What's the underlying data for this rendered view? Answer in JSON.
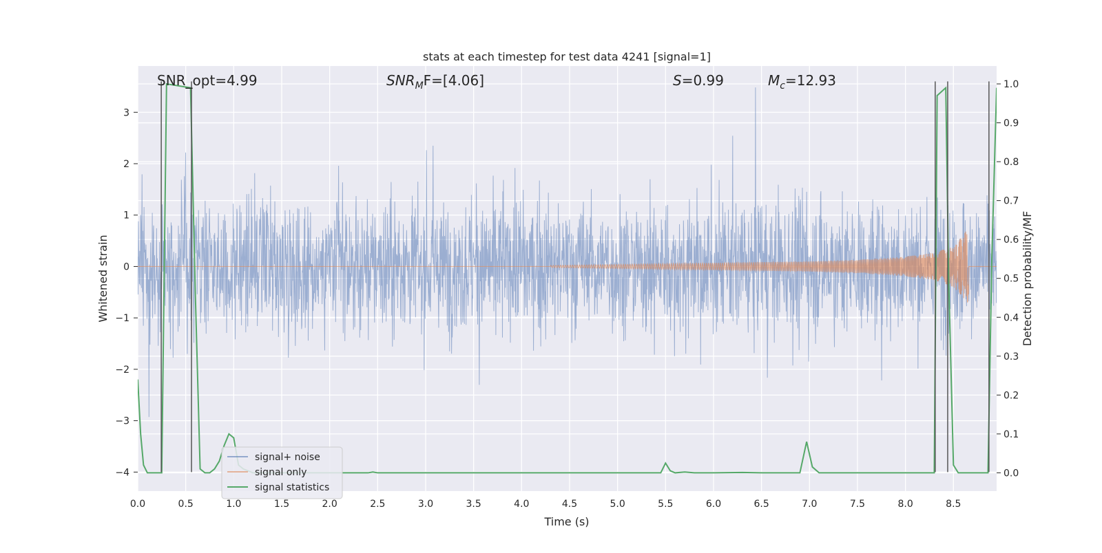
{
  "chart_data": {
    "type": "line",
    "title": "stats at each timestep for test data 4241 [signal=1]",
    "xlabel": "Time (s)",
    "ylabel_left": "Whitened strain",
    "ylabel_right": "Detection probability/MF",
    "xlim": [
      0,
      8.95
    ],
    "ylim_left": [
      -4.37,
      3.9
    ],
    "ylim_right": [
      -0.047,
      1.046
    ],
    "x_ticks": [
      0.0,
      0.5,
      1.0,
      1.5,
      2.0,
      2.5,
      3.0,
      3.5,
      4.0,
      4.5,
      5.0,
      5.5,
      6.0,
      6.5,
      7.0,
      7.5,
      8.0,
      8.5
    ],
    "x_tick_labels": [
      "0.0",
      "0.5",
      "1.0",
      "1.5",
      "2.0",
      "2.5",
      "3.0",
      "3.5",
      "4.0",
      "4.5",
      "5.0",
      "5.5",
      "6.0",
      "6.5",
      "7.0",
      "7.5",
      "8.0",
      "8.5"
    ],
    "y_ticks_left": [
      3,
      2,
      1,
      0,
      -1,
      -2,
      -3,
      -4
    ],
    "y_tick_labels_left": [
      "3",
      "2",
      "1",
      "0",
      "−1",
      "−2",
      "−3",
      "−4"
    ],
    "y_ticks_right": [
      1.0,
      0.9,
      0.8,
      0.7,
      0.6,
      0.5,
      0.4,
      0.3,
      0.2,
      0.1,
      0.0
    ],
    "y_tick_labels_right": [
      "1.0",
      "0.9",
      "0.8",
      "0.7",
      "0.6",
      "0.5",
      "0.4",
      "0.3",
      "0.2",
      "0.1",
      "0.0"
    ],
    "annotations": {
      "snr_opt": "SNR_opt=4.99",
      "snr_mf_prefix": "SNR",
      "snr_mf_sub": "M",
      "snr_mf_suffix": "F=[4.06]",
      "s_prefix": "S",
      "s_value": "=0.99",
      "mc_prefix": "M",
      "mc_sub": "c",
      "mc_value": "=12.93"
    },
    "legend": {
      "placement": "lower-left",
      "entries": [
        "signal+ noise",
        "signal only",
        "signal statistics"
      ]
    },
    "series": [
      {
        "name": "signal+ noise",
        "color": "#4c72b0",
        "style": "dense noise, amplitude approx ±1.5 with spikes up to about ±3.6",
        "envelope": {
          "typical": 1.5,
          "max_spike": 3.6
        }
      },
      {
        "name": "signal only",
        "color": "#dd8452",
        "style": "chirp, zero until about 4.3 s then growing oscillation ending near 8.65 s",
        "x": [
          0.0,
          4.3,
          5.0,
          6.0,
          7.0,
          7.5,
          8.0,
          8.3,
          8.5,
          8.6,
          8.65,
          8.95
        ],
        "amplitude": [
          0.0,
          0.02,
          0.04,
          0.07,
          0.1,
          0.13,
          0.19,
          0.27,
          0.4,
          0.6,
          0.75,
          0.0
        ]
      },
      {
        "name": "signal statistics",
        "color": "#55a868",
        "axis": "right",
        "x": [
          0.0,
          0.03,
          0.06,
          0.1,
          0.2,
          0.25,
          0.3,
          0.55,
          0.6,
          0.65,
          0.7,
          0.75,
          0.8,
          0.85,
          0.9,
          0.95,
          1.0,
          1.05,
          1.1,
          1.2,
          1.5,
          2.0,
          2.4,
          2.45,
          2.5,
          3.0,
          4.0,
          5.0,
          5.45,
          5.5,
          5.55,
          5.6,
          5.7,
          5.8,
          6.0,
          6.3,
          6.5,
          6.9,
          6.97,
          7.03,
          7.1,
          7.5,
          8.0,
          8.3,
          8.33,
          8.42,
          8.45,
          8.5,
          8.55,
          8.8,
          8.86,
          8.9,
          8.95
        ],
        "y": [
          0.24,
          0.1,
          0.02,
          0.0,
          0.0,
          0.0,
          1.0,
          0.99,
          0.46,
          0.01,
          0.0,
          0.0,
          0.01,
          0.03,
          0.07,
          0.1,
          0.09,
          0.02,
          0.01,
          0.0,
          0.0,
          0.0,
          0.0,
          0.002,
          0.0,
          0.0,
          0.0,
          0.0,
          0.0,
          0.025,
          0.005,
          0.0,
          0.002,
          0.0,
          0.0,
          0.001,
          0.0,
          0.0,
          0.08,
          0.015,
          0.0,
          0.0,
          0.0,
          0.0,
          0.97,
          0.99,
          0.5,
          0.02,
          0.0,
          0.0,
          0.0,
          0.55,
          0.99
        ]
      }
    ],
    "vlines": {
      "color": "#555555",
      "x": [
        0.245,
        0.56,
        8.31,
        8.44,
        8.87
      ],
      "y_top": 3.6,
      "y_bottom": -4.0
    }
  }
}
